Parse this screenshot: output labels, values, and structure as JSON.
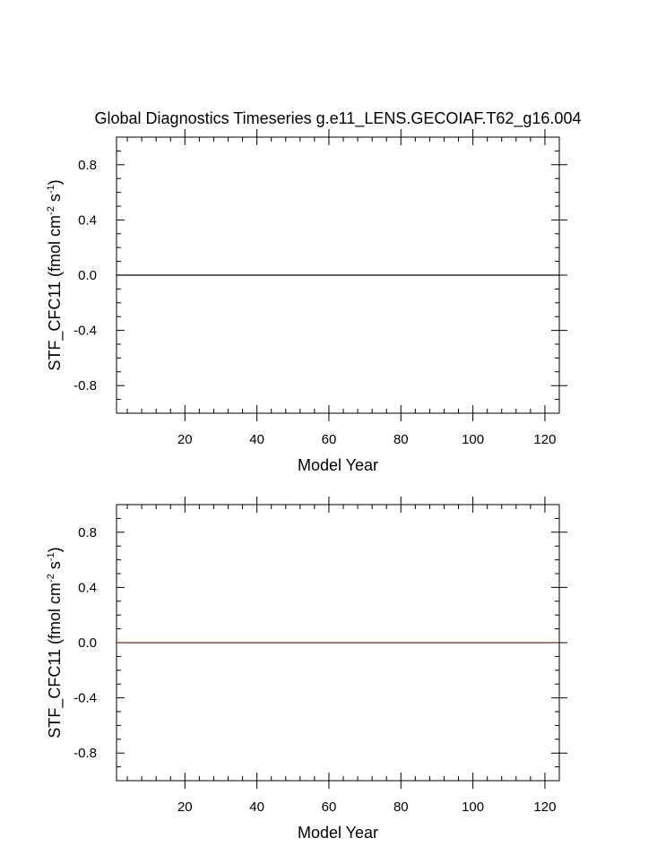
{
  "title": "Global Diagnostics Timeseries g.e11_LENS.GECOIAF.T62_g16.004",
  "chart_data": [
    {
      "type": "line",
      "xlabel": "Model Year",
      "ylabel": "STF_CFC11 (fmol cm",
      "ylabel_sup1": "-2",
      "ylabel_mid": " s",
      "ylabel_sup2": "-1",
      "ylabel_end": ")",
      "xlim": [
        1,
        124
      ],
      "ylim": [
        -1.0,
        1.0
      ],
      "xticks": [
        20,
        40,
        60,
        80,
        100,
        120
      ],
      "xtick_labels": [
        "20",
        "40",
        "60",
        "80",
        "100",
        "120"
      ],
      "yticks": [
        -0.8,
        -0.4,
        0.0,
        0.4,
        0.8
      ],
      "ytick_labels": [
        "-0.8",
        "-0.4",
        "0.0",
        "0.4",
        "0.8"
      ],
      "grid": false,
      "series": [
        {
          "x": [
            1,
            124
          ],
          "y": [
            0.0,
            0.0
          ],
          "color": "#000000"
        }
      ]
    },
    {
      "type": "line",
      "xlabel": "Model Year",
      "ylabel": "STF_CFC11 (fmol cm",
      "ylabel_sup1": "-2",
      "ylabel_mid": " s",
      "ylabel_sup2": "-1",
      "ylabel_end": ")",
      "xlim": [
        1,
        124
      ],
      "ylim": [
        -1.0,
        1.0
      ],
      "xticks": [
        20,
        40,
        60,
        80,
        100,
        120
      ],
      "xtick_labels": [
        "20",
        "40",
        "60",
        "80",
        "100",
        "120"
      ],
      "yticks": [
        -0.8,
        -0.4,
        0.0,
        0.4,
        0.8
      ],
      "ytick_labels": [
        "-0.8",
        "-0.4",
        "0.0",
        "0.4",
        "0.8"
      ],
      "grid": false,
      "series": [
        {
          "x": [
            1,
            124
          ],
          "y": [
            0.0,
            0.0
          ],
          "color": "#8b1a1a"
        }
      ]
    }
  ]
}
